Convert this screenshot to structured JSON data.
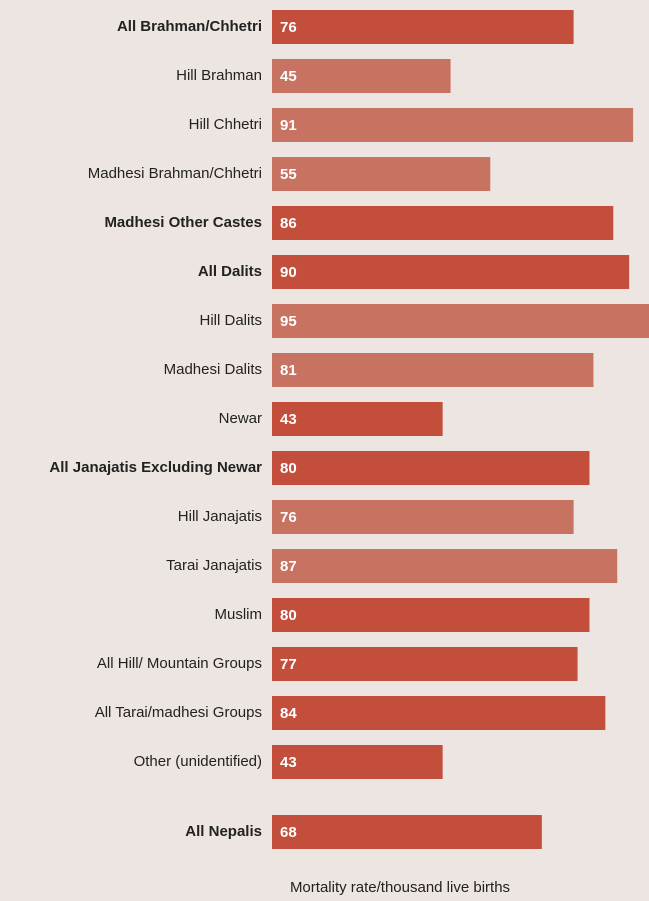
{
  "chart_data": {
    "type": "barh",
    "categories": [
      "All Brahman/Chhetri",
      "Hill Brahman",
      "Hill Chhetri",
      "Madhesi Brahman/Chhetri",
      "Madhesi Other Castes",
      "All Dalits",
      "Hill Dalits",
      "Madhesi Dalits",
      "Newar",
      "All Janajatis Excluding Newar",
      "Hill Janajatis",
      "Tarai Janajatis",
      "Muslim",
      "All Hill/ Mountain Groups",
      "All Tarai/madhesi Groups",
      "Other (unidentified)",
      "All Nepalis"
    ],
    "values": [
      76,
      45,
      91,
      55,
      86,
      90,
      95,
      81,
      43,
      80,
      76,
      87,
      80,
      77,
      84,
      43,
      68
    ],
    "colors": [
      "#c44e3c",
      "#c87262",
      "#c87262",
      "#c87262",
      "#c44e3c",
      "#c44e3c",
      "#c87262",
      "#c87262",
      "#c44e3c",
      "#c44e3c",
      "#c87262",
      "#c87262",
      "#c44e3c",
      "#c44e3c",
      "#c44e3c",
      "#c44e3c",
      "#c44e3c"
    ],
    "bold": [
      true,
      false,
      false,
      false,
      true,
      true,
      false,
      false,
      false,
      true,
      false,
      false,
      false,
      false,
      false,
      false,
      true
    ],
    "xlim": [
      0,
      95
    ],
    "xlabel": "Mortality rate/thousand live births"
  }
}
